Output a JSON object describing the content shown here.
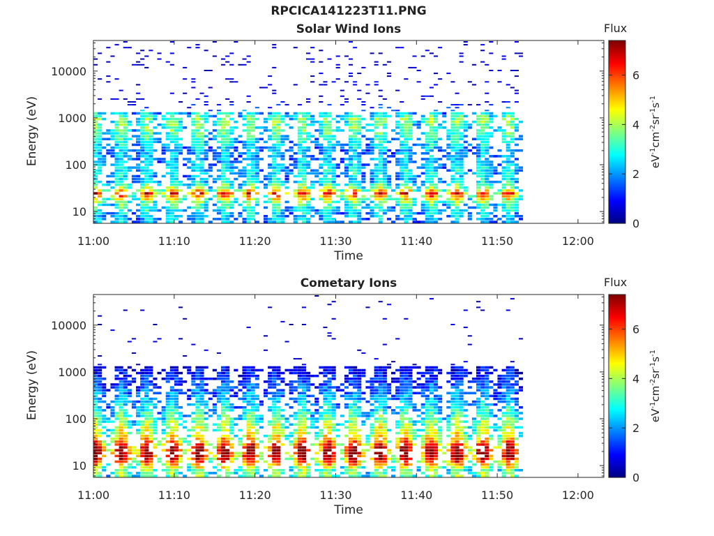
{
  "title": "RPCICA141223T11.PNG",
  "colorbar": {
    "title": "Flux",
    "unit_base": [
      "eV",
      "cm",
      "sr",
      "s"
    ],
    "unit_exp": [
      "-1",
      "-2",
      "-1",
      "-1"
    ],
    "ticks": [
      "0",
      "2",
      "4",
      "6"
    ],
    "tick_values": [
      0,
      2,
      4,
      6
    ],
    "range": [
      0,
      7.4
    ],
    "colormap": "jet"
  },
  "chart_data": [
    {
      "type": "heatmap",
      "title": "Solar Wind Ions",
      "xlabel": "Time",
      "ylabel": "Energy (eV)",
      "x_ticks": [
        "11:00",
        "11:10",
        "11:20",
        "11:30",
        "11:40",
        "11:50",
        "12:00"
      ],
      "x_tick_minutes": [
        0,
        10,
        20,
        30,
        40,
        50,
        60
      ],
      "x_range_minutes": [
        0,
        63.2
      ],
      "x_data_end_minutes": 52.8,
      "y_scale": "log",
      "y_ticks": [
        "10",
        "100",
        "1000",
        "10000"
      ],
      "y_tick_values": [
        10,
        100,
        1000,
        10000
      ],
      "y_range": [
        5.6,
        45000
      ],
      "sweep_period_minutes": 3.2,
      "flux_vs_energy": [
        {
          "energy": 7,
          "flux": 2.3
        },
        {
          "energy": 10,
          "flux": 2.6
        },
        {
          "energy": 15,
          "flux": 3.3
        },
        {
          "energy": 20,
          "flux": 4.6
        },
        {
          "energy": 25,
          "flux": 6.2
        },
        {
          "energy": 30,
          "flux": 4.0
        },
        {
          "energy": 45,
          "flux": 2.5
        },
        {
          "energy": 70,
          "flux": 2.6
        },
        {
          "energy": 120,
          "flux": 2.2
        },
        {
          "energy": 200,
          "flux": 2.2
        },
        {
          "energy": 400,
          "flux": 3.0
        },
        {
          "energy": 600,
          "flux": 3.3
        },
        {
          "energy": 1000,
          "flux": 3.5
        },
        {
          "energy": 2000,
          "flux": 0.8
        },
        {
          "energy": 5000,
          "flux": 0.5
        },
        {
          "energy": 10000,
          "flux": 0.4
        },
        {
          "energy": 30000,
          "flux": 0.4
        }
      ]
    },
    {
      "type": "heatmap",
      "title": "Cometary Ions",
      "xlabel": "Time",
      "ylabel": "Energy (eV)",
      "x_ticks": [
        "11:00",
        "11:10",
        "11:20",
        "11:30",
        "11:40",
        "11:50",
        "12:00"
      ],
      "x_tick_minutes": [
        0,
        10,
        20,
        30,
        40,
        50,
        60
      ],
      "x_range_minutes": [
        0,
        63.2
      ],
      "x_data_end_minutes": 52.8,
      "y_scale": "log",
      "y_ticks": [
        "10",
        "100",
        "1000",
        "10000"
      ],
      "y_tick_values": [
        10,
        100,
        1000,
        10000
      ],
      "y_range": [
        5.6,
        45000
      ],
      "sweep_period_minutes": 3.2,
      "flux_vs_energy": [
        {
          "energy": 8,
          "flux": 3.5
        },
        {
          "energy": 12,
          "flux": 5.6
        },
        {
          "energy": 17,
          "flux": 6.8
        },
        {
          "energy": 25,
          "flux": 6.5
        },
        {
          "energy": 35,
          "flux": 5.0
        },
        {
          "energy": 50,
          "flux": 4.2
        },
        {
          "energy": 70,
          "flux": 4.0
        },
        {
          "energy": 100,
          "flux": 3.4
        },
        {
          "energy": 150,
          "flux": 2.8
        },
        {
          "energy": 250,
          "flux": 2.2
        },
        {
          "energy": 400,
          "flux": 1.8
        },
        {
          "energy": 700,
          "flux": 1.2
        },
        {
          "energy": 1500,
          "flux": 0.6
        },
        {
          "energy": 2500,
          "flux": 0.4
        },
        {
          "energy": 4000,
          "flux": 0.3
        },
        {
          "energy": 25000,
          "flux": 0.3
        }
      ]
    }
  ]
}
